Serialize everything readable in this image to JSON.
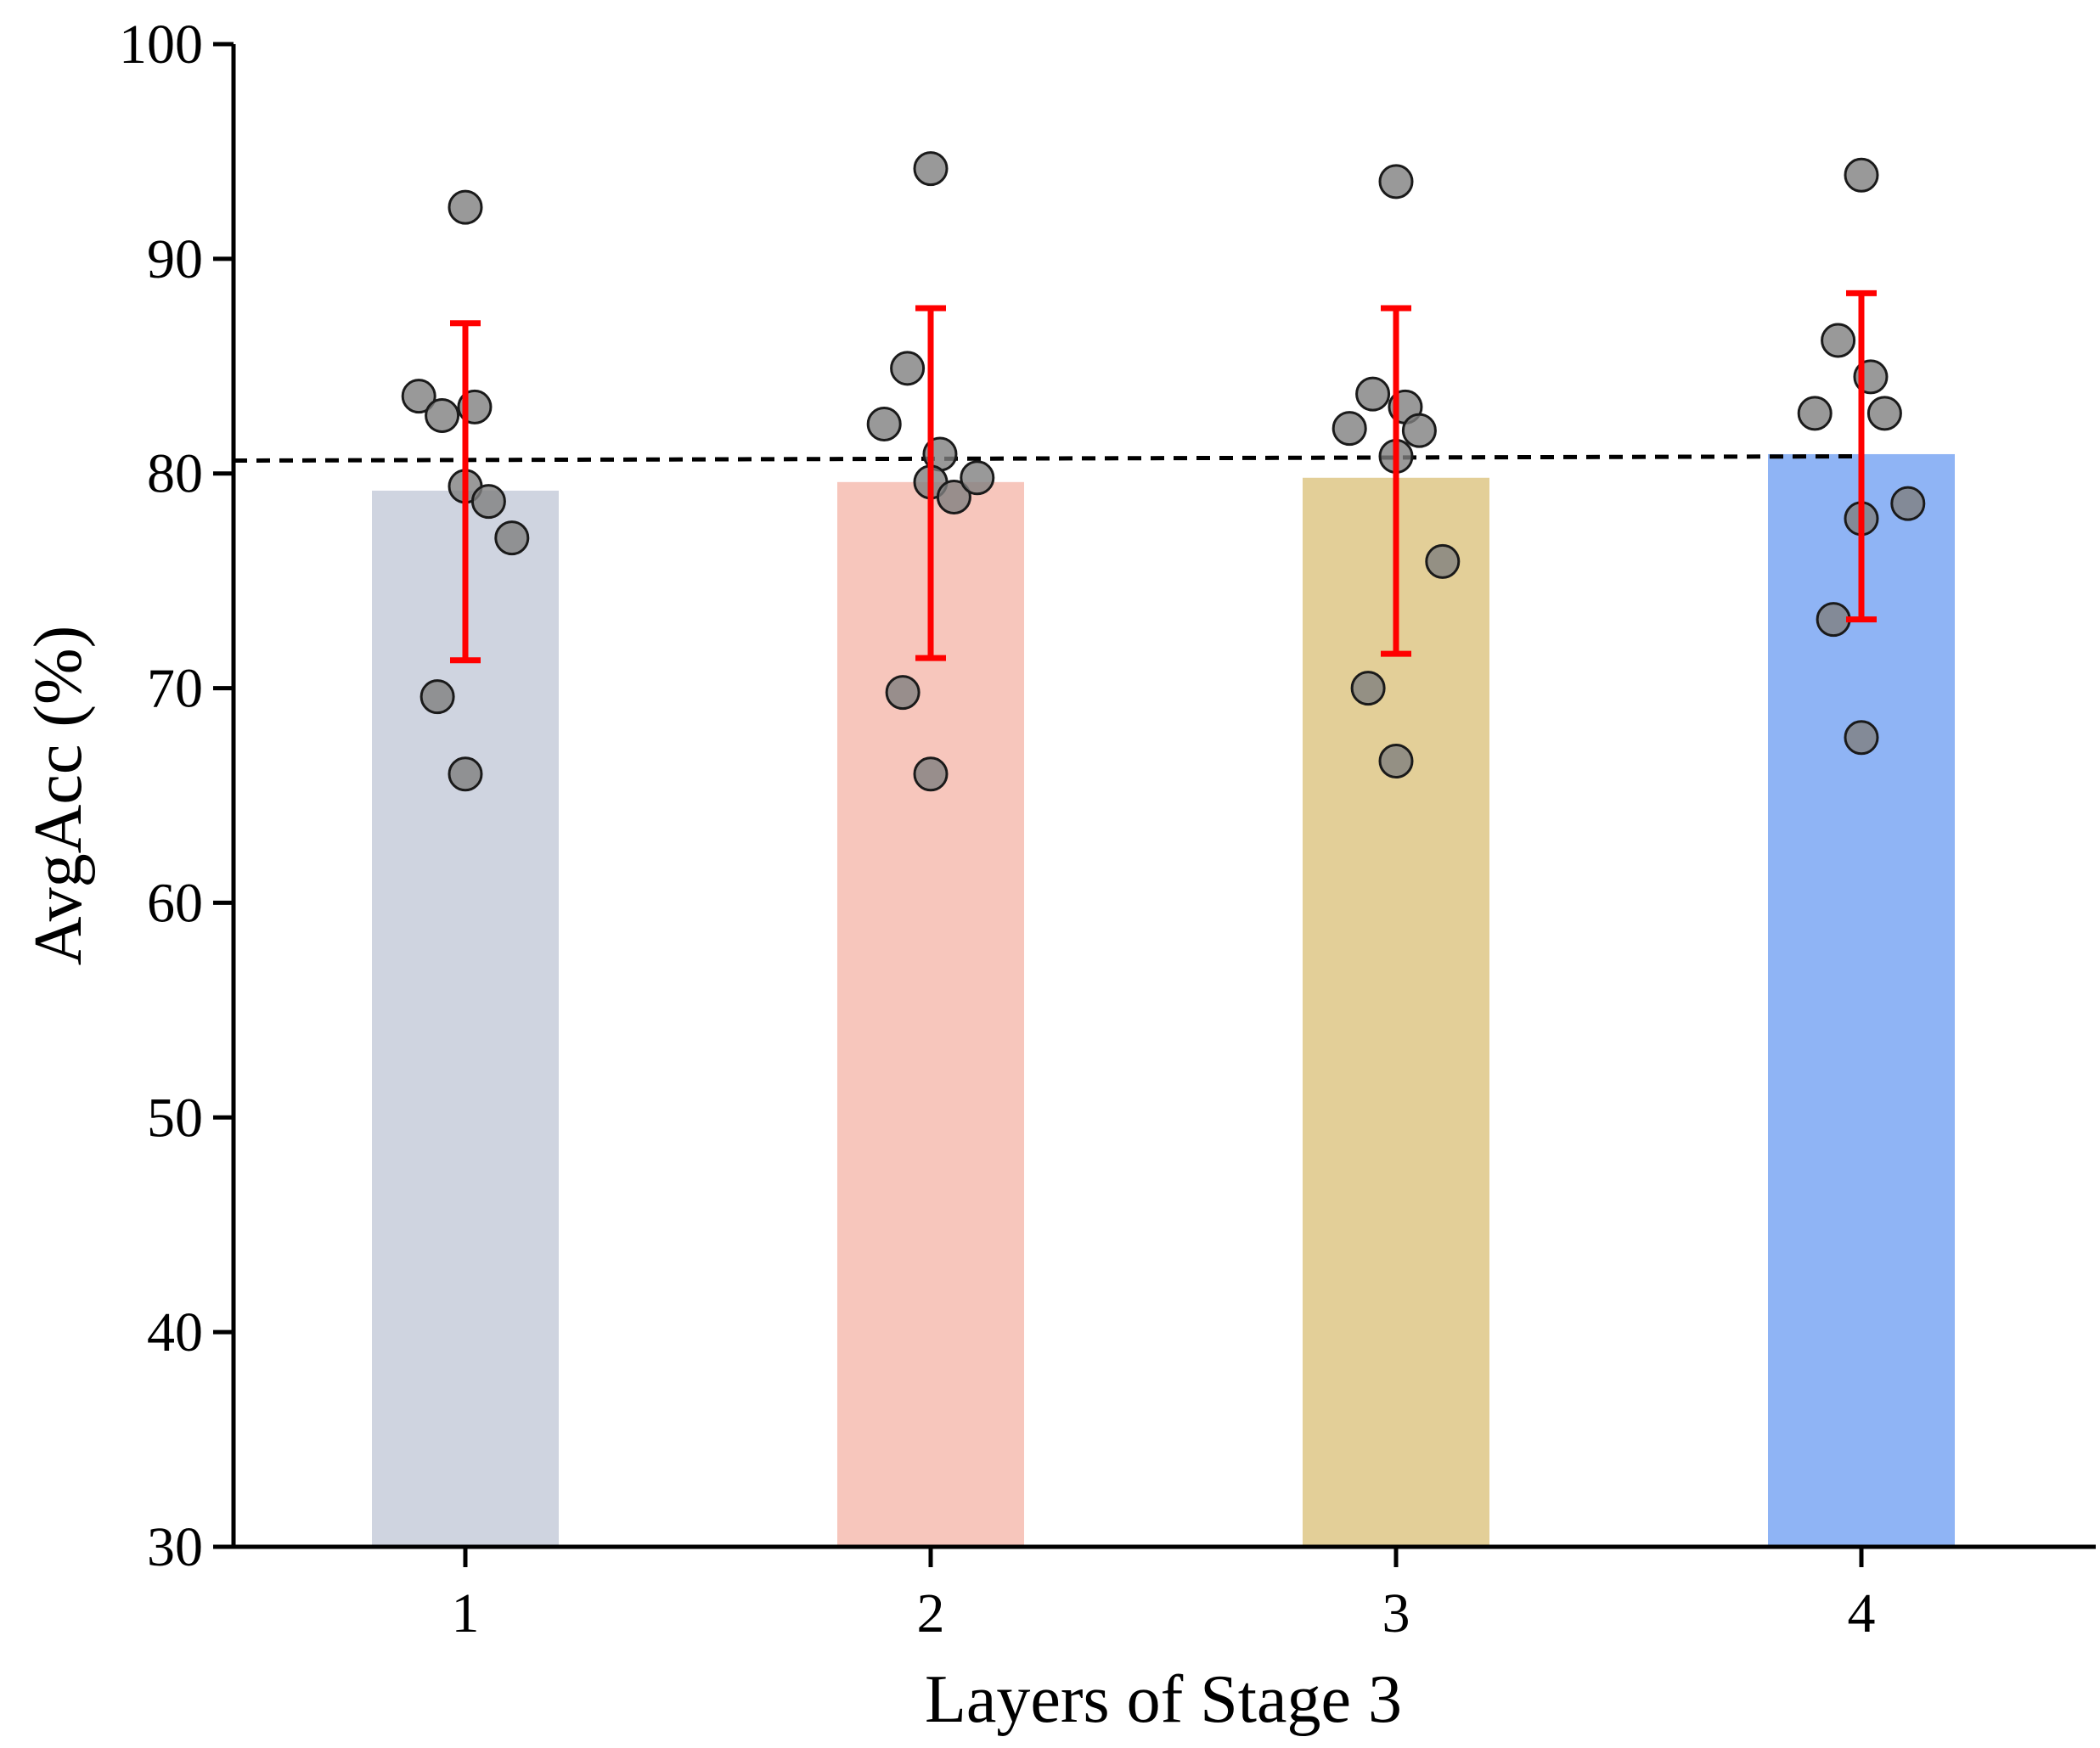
{
  "chart_data": {
    "type": "bar",
    "title": "",
    "xlabel": "Layers of Stage 3",
    "ylabel": "AvgAcc (%)",
    "ylim": [
      30,
      100
    ],
    "yticks": [
      30,
      40,
      50,
      60,
      70,
      80,
      90,
      100
    ],
    "categories": [
      "1",
      "2",
      "3",
      "4"
    ],
    "values": [
      79.2,
      79.6,
      79.8,
      80.9
    ],
    "bar_colors": [
      "#cfd4e0",
      "#f7c6bc",
      "#e3cf98",
      "#8fb4f5"
    ],
    "error_bars": [
      {
        "low": 71.3,
        "high": 87.0
      },
      {
        "low": 71.4,
        "high": 87.7
      },
      {
        "low": 71.6,
        "high": 87.7
      },
      {
        "low": 73.2,
        "high": 88.4
      }
    ],
    "error_color": "#ff0000",
    "points": [
      [
        {
          "offset": -0.1,
          "y": 83.6
        },
        {
          "offset": -0.05,
          "y": 82.7
        },
        {
          "offset": 0.02,
          "y": 83.1
        },
        {
          "offset": 0.0,
          "y": 92.4
        },
        {
          "offset": 0.0,
          "y": 79.4
        },
        {
          "offset": 0.05,
          "y": 78.7
        },
        {
          "offset": 0.1,
          "y": 77.0
        },
        {
          "offset": -0.06,
          "y": 69.6
        },
        {
          "offset": 0.0,
          "y": 66.0
        }
      ],
      [
        {
          "offset": 0.0,
          "y": 94.2
        },
        {
          "offset": -0.05,
          "y": 84.9
        },
        {
          "offset": -0.1,
          "y": 82.3
        },
        {
          "offset": 0.02,
          "y": 80.9
        },
        {
          "offset": 0.0,
          "y": 79.6
        },
        {
          "offset": 0.05,
          "y": 78.9
        },
        {
          "offset": 0.1,
          "y": 79.8
        },
        {
          "offset": -0.06,
          "y": 69.8
        },
        {
          "offset": 0.0,
          "y": 66.0
        }
      ],
      [
        {
          "offset": 0.0,
          "y": 93.6
        },
        {
          "offset": -0.05,
          "y": 83.7
        },
        {
          "offset": -0.1,
          "y": 82.1
        },
        {
          "offset": 0.02,
          "y": 83.1
        },
        {
          "offset": 0.05,
          "y": 82.0
        },
        {
          "offset": 0.0,
          "y": 80.8
        },
        {
          "offset": 0.1,
          "y": 75.9
        },
        {
          "offset": -0.06,
          "y": 70.0
        },
        {
          "offset": 0.0,
          "y": 66.6
        }
      ],
      [
        {
          "offset": 0.0,
          "y": 93.9
        },
        {
          "offset": -0.05,
          "y": 86.2
        },
        {
          "offset": 0.02,
          "y": 84.5
        },
        {
          "offset": -0.1,
          "y": 82.8
        },
        {
          "offset": 0.05,
          "y": 82.8
        },
        {
          "offset": 0.1,
          "y": 78.6
        },
        {
          "offset": 0.0,
          "y": 77.9
        },
        {
          "offset": -0.06,
          "y": 73.2
        },
        {
          "offset": 0.0,
          "y": 67.7
        }
      ]
    ],
    "point_color": "#7f7f7f",
    "reference_line": {
      "start": 80.6,
      "end": 80.8,
      "style": "dashed"
    }
  }
}
